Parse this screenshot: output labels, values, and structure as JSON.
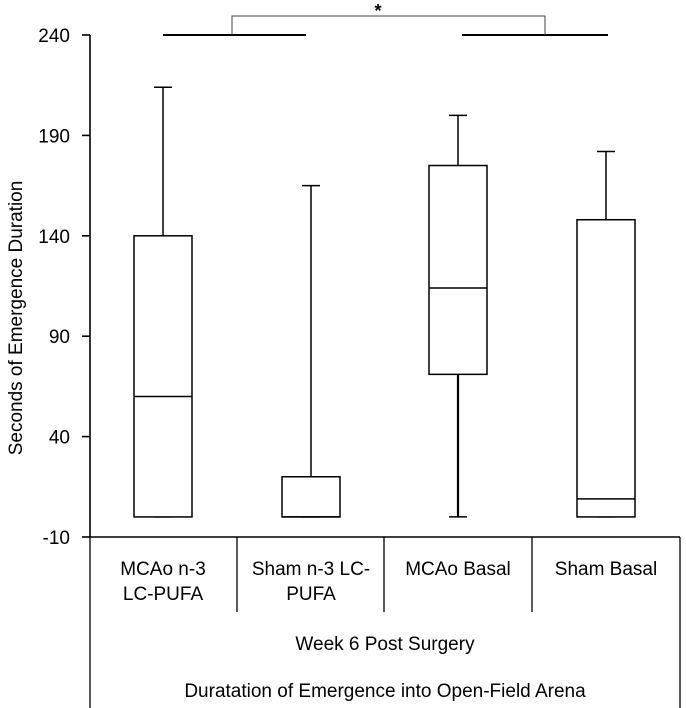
{
  "chart_data": {
    "type": "boxplot",
    "title": "",
    "ylabel": "Seconds of Emergence Duration",
    "ylim": [
      -10,
      240
    ],
    "yticks": [
      -10,
      40,
      90,
      140,
      190,
      240
    ],
    "categories": [
      [
        "MCAo n-3",
        "LC-PUFA"
      ],
      [
        "Sham n-3 LC-",
        "PUFA"
      ],
      [
        "MCAo Basal"
      ],
      [
        "Sham Basal"
      ]
    ],
    "boxes": [
      {
        "name": "MCAo n-3 LC-PUFA",
        "min": 0,
        "q1": 0,
        "median": 60,
        "q3": 140,
        "max": 214
      },
      {
        "name": "Sham n-3 LC-PUFA",
        "min": 0,
        "q1": 0,
        "median": 0,
        "q3": 20,
        "max": 165
      },
      {
        "name": "MCAo Basal",
        "min": 0,
        "q1": 71,
        "median": 114,
        "q3": 175,
        "max": 200
      },
      {
        "name": "Sham Basal",
        "min": 0,
        "q1": 0,
        "median": 9,
        "q3": 148,
        "max": 182
      }
    ],
    "group_label": "Week 6 Post Surgery",
    "xlabel": "Duratation of Emergence into Open-Field Arena",
    "significance": {
      "label": "*",
      "between": [
        "n-3 LC-PUFA groups",
        "Basal groups"
      ]
    }
  },
  "colors": {
    "stroke": "#000000",
    "fill": "#ffffff"
  }
}
